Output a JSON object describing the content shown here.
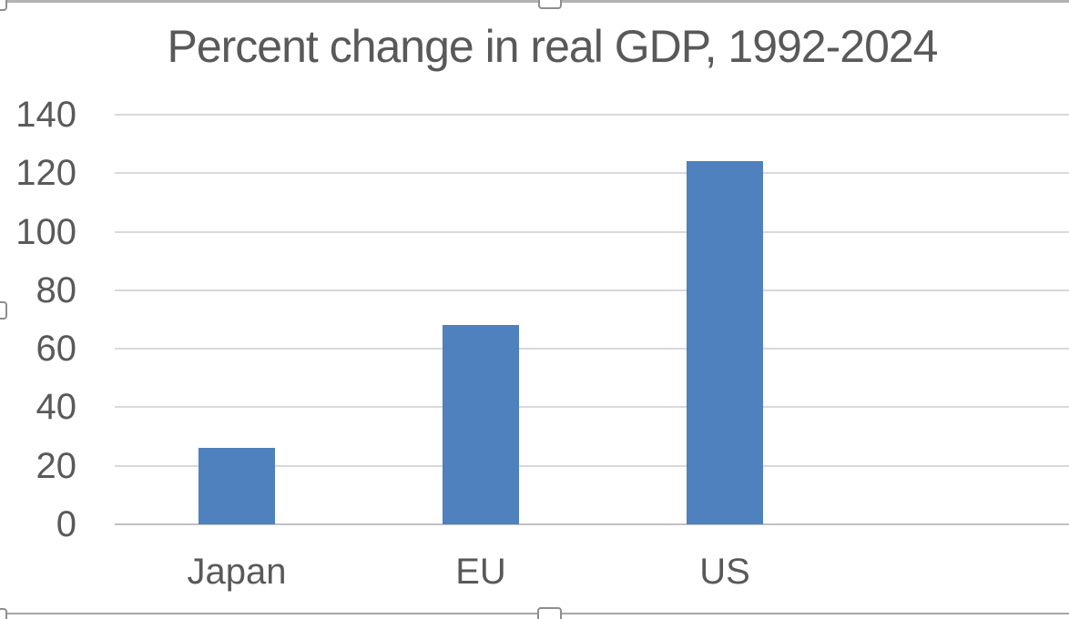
{
  "chart_data": {
    "type": "bar",
    "title": "Percent change in real GDP, 1992-2024",
    "categories": [
      "Japan",
      "EU",
      "US"
    ],
    "values": [
      26,
      68,
      124
    ],
    "xlabel": "",
    "ylabel": "",
    "ylim": [
      0,
      140
    ],
    "yticks": [
      0,
      20,
      40,
      60,
      80,
      100,
      120,
      140
    ],
    "grid": true,
    "legend": false,
    "bar_color": "#4E81BD",
    "text_color": "#595959",
    "gridline_color": "#D9D9D9",
    "axis_line_color": "#C1C1C1"
  },
  "selection": {
    "border_color": "#A6A6A6",
    "handle_fill": "#FFFFFF",
    "handle_border": "#8E8E8E",
    "handles": [
      "top-left",
      "top-center",
      "middle-left",
      "bottom-left",
      "bottom-center"
    ]
  }
}
